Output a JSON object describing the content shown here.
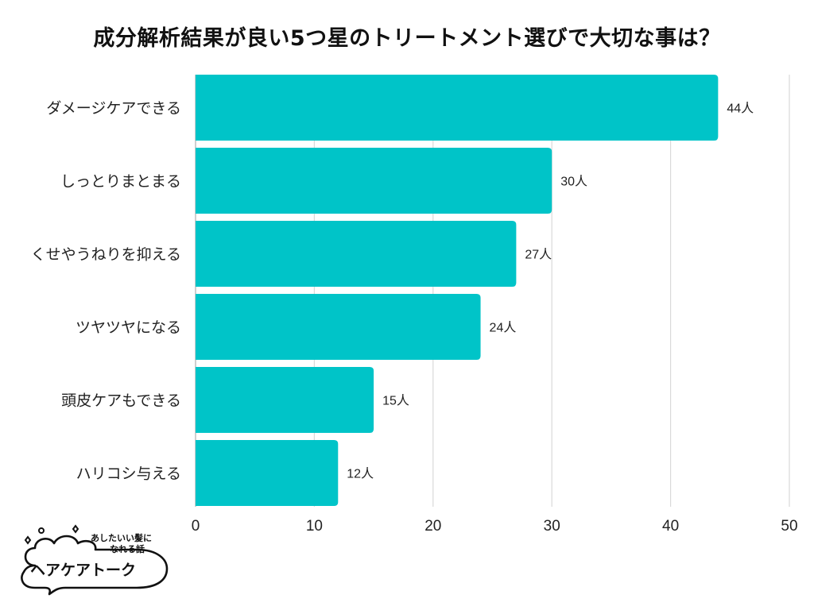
{
  "chart_data": {
    "type": "bar",
    "orientation": "horizontal",
    "title": "成分解析結果が良い5つ星のトリートメント選びで大切な事は？",
    "categories": [
      "ダメージケアできる",
      "しっとりまとまる",
      "くせやうねりを抑える",
      "ツヤツヤになる",
      "頭皮ケアもできる",
      "ハリコシ与える"
    ],
    "values": [
      44,
      30,
      27,
      24,
      15,
      12
    ],
    "value_labels": [
      "44人",
      "30人",
      "27人",
      "24人",
      "15人",
      "12人"
    ],
    "xlim": [
      0,
      50
    ],
    "xticks": [
      "0",
      "10",
      "20",
      "30",
      "40",
      "50"
    ],
    "xlabel": "",
    "ylabel": "",
    "grid": true,
    "bar_color": "#00C4C8",
    "grid_color": "#D9D9D9"
  },
  "logo": {
    "tagline_line1": "あしたいい髪に",
    "tagline_line2": "なれる話",
    "name": "ヘアケアトーク"
  }
}
